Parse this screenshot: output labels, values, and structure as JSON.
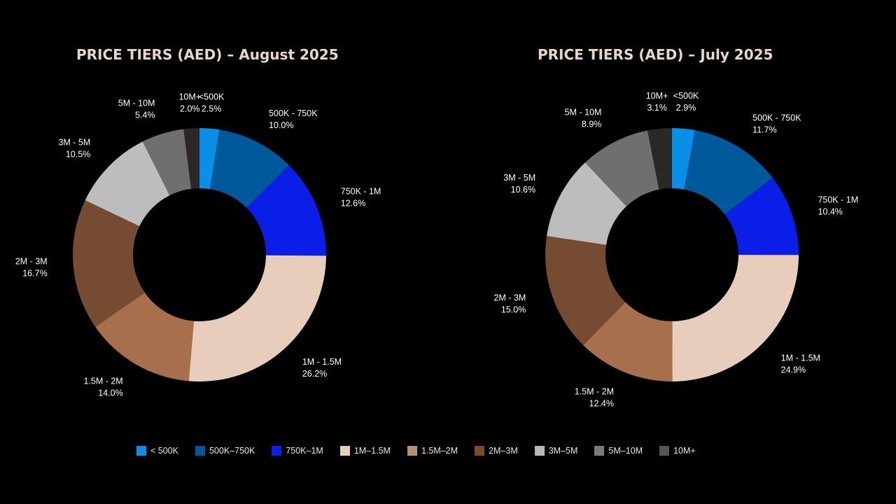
{
  "chart_data": [
    {
      "type": "pie",
      "title": "PRICE TIERS (AED) – August 2025",
      "slices": [
        {
          "label": "<500K",
          "value": 2.5,
          "display": "2.5%"
        },
        {
          "label": "500K - 750K",
          "value": 10.0,
          "display": "10.0%"
        },
        {
          "label": "750K - 1M",
          "value": 12.6,
          "display": "12.6%"
        },
        {
          "label": "1M - 1.5M",
          "value": 26.2,
          "display": "26.2%"
        },
        {
          "label": "1.5M - 2M",
          "value": 14.0,
          "display": "14.0%"
        },
        {
          "label": "2M - 3M",
          "value": 16.7,
          "display": "16.7%"
        },
        {
          "label": "3M - 5M",
          "value": 10.5,
          "display": "10.5%"
        },
        {
          "label": "5M - 10M",
          "value": 5.4,
          "display": "5.4%"
        },
        {
          "label": "10M+",
          "value": 2.0,
          "display": "2.0%"
        }
      ]
    },
    {
      "type": "pie",
      "title": "PRICE TIERS (AED) – July 2025",
      "slices": [
        {
          "label": "<500K",
          "value": 2.9,
          "display": "2.9%"
        },
        {
          "label": "500K - 750K",
          "value": 11.7,
          "display": "11.7%"
        },
        {
          "label": "750K - 1M",
          "value": 10.4,
          "display": "10.4%"
        },
        {
          "label": "1M - 1.5M",
          "value": 24.9,
          "display": "24.9%"
        },
        {
          "label": "1.5M - 2M",
          "value": 12.4,
          "display": "12.4%"
        },
        {
          "label": "2M - 3M",
          "value": 15.0,
          "display": "15.0%"
        },
        {
          "label": "3M - 5M",
          "value": 10.6,
          "display": "10.6%"
        },
        {
          "label": "5M - 10M",
          "value": 8.9,
          "display": "8.9%"
        },
        {
          "label": "10M+",
          "value": 3.1,
          "display": "3.1%"
        }
      ]
    }
  ],
  "colors": [
    "#0a8fe8",
    "#01589a",
    "#0a1ee8",
    "#e8cdbc",
    "#a86f4c",
    "#754b32",
    "#bdbdbd",
    "#6f6f6f",
    "#2b2727"
  ],
  "legend": {
    "items": [
      {
        "label": "< 500K",
        "color": "#0a8fe8"
      },
      {
        "label": "500K–750K",
        "color": "#01589a"
      },
      {
        "label": "750K–1M",
        "color": "#0a1ee8"
      },
      {
        "label": "1M–1.5M",
        "color": "#e8cdbc"
      },
      {
        "label": "1.5M–2M",
        "color": "#b49170"
      },
      {
        "label": "2M–3M",
        "color": "#7a4c27"
      },
      {
        "label": "3M–5M",
        "color": "#b8b8b8"
      },
      {
        "label": "5M–10M",
        "color": "#7a7a7a"
      },
      {
        "label": "10M+",
        "color": "#555555"
      }
    ]
  }
}
